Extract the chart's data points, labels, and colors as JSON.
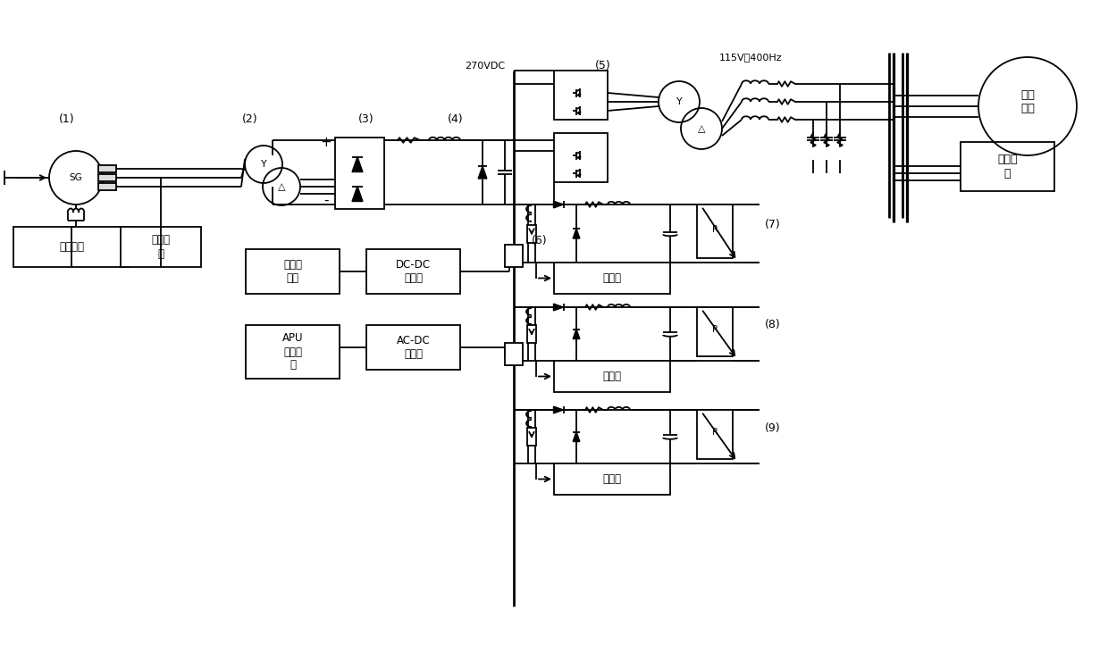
{
  "bg": "#ffffff",
  "lc": "#000000",
  "lw": 1.3,
  "fw": 12.4,
  "fh": 7.29,
  "dpi": 100,
  "xlim": [
    0,
    124
  ],
  "ylim": [
    0,
    72.9
  ],
  "texts": {
    "sg": "SG",
    "n1": "(1)",
    "n2": "(2)",
    "n3": "(3)",
    "n4": "(4)",
    "n5": "(5)",
    "n6": "(6)",
    "n7": "(7)",
    "n8": "(8)",
    "n9": "(9)",
    "excite": "励磁控制",
    "filter": "无源滤\n波",
    "vdc": "270VDC",
    "vac": "115V，400Hz",
    "motor1": "感应\n电机",
    "load1": "阻感负\n载",
    "bat": "备用电\n池组",
    "dcdc": "DC-DC\n变换器",
    "apu": "APU\n发电机\n组",
    "acdc": "AC-DC\n变换器",
    "ctrl": "控制器",
    "Y": "Y",
    "delta": "△",
    "plus": "+",
    "minus": "-",
    "R": "R"
  }
}
